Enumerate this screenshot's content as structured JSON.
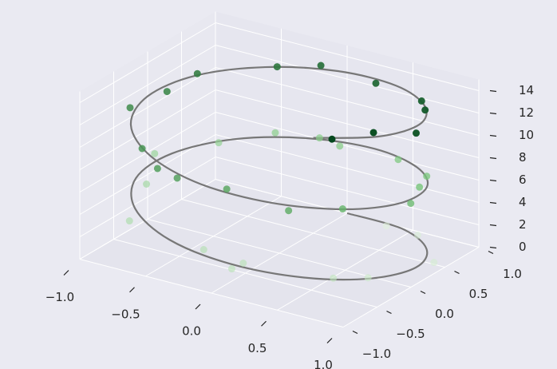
{
  "chart_data": {
    "type": "scatter3d",
    "xlim": [
      -1,
      1
    ],
    "ylim": [
      -1,
      1
    ],
    "zlim": [
      0,
      15
    ],
    "xticks": [
      {
        "value": -1,
        "label": "−1.0"
      },
      {
        "value": -0.5,
        "label": "−0.5"
      },
      {
        "value": 0,
        "label": "0.0"
      },
      {
        "value": 0.5,
        "label": "0.5"
      },
      {
        "value": 1,
        "label": "1.0"
      }
    ],
    "yticks": [
      {
        "value": -1,
        "label": "−1.0"
      },
      {
        "value": -0.5,
        "label": "−0.5"
      },
      {
        "value": 0,
        "label": "0.0"
      },
      {
        "value": 0.5,
        "label": "0.5"
      },
      {
        "value": 1,
        "label": "1.0"
      }
    ],
    "zticks": [
      0,
      2,
      4,
      6,
      8,
      10,
      12,
      14
    ],
    "grid": true,
    "line": {
      "color": "#777777",
      "z": [
        0,
        0.5,
        1,
        1.5,
        2,
        2.5,
        3,
        3.5,
        4,
        4.5,
        5,
        5.5,
        6,
        6.5,
        7,
        7.5,
        8,
        8.5,
        9,
        9.5,
        10,
        10.5,
        11,
        11.5,
        12,
        12.5,
        13,
        13.5,
        14,
        14.5,
        15
      ],
      "x": [
        0,
        0.48,
        0.84,
        1.0,
        0.91,
        0.6,
        0.14,
        -0.35,
        -0.76,
        -0.98,
        -0.96,
        -0.71,
        -0.28,
        0.22,
        0.66,
        0.94,
        0.99,
        0.8,
        0.41,
        -0.08,
        -0.54,
        -0.88,
        -1.0,
        -0.88,
        -0.54,
        -0.07,
        0.42,
        0.8,
        0.99,
        0.93,
        0.65
      ],
      "y": [
        1,
        0.88,
        0.54,
        0.07,
        -0.42,
        -0.8,
        -0.99,
        -0.94,
        -0.65,
        -0.21,
        0.28,
        0.71,
        0.96,
        0.98,
        0.75,
        0.35,
        -0.15,
        -0.6,
        -0.91,
        -1.0,
        -0.84,
        -0.48,
        0,
        0.48,
        0.84,
        1.0,
        0.91,
        0.59,
        0.14,
        -0.35,
        -0.76
      ]
    },
    "scatter": {
      "colormap": [
        "#e5f5e0",
        "#74c476",
        "#00441b"
      ],
      "z": [
        0.3,
        0.8,
        1.2,
        1.9,
        2.4,
        2.9,
        3.3,
        3.8,
        4.4,
        4.9,
        5.3,
        5.8,
        6.2,
        6.7,
        7.1,
        7.6,
        8.0,
        8.4,
        8.9,
        9.3,
        9.8,
        10.2,
        10.7,
        11.1,
        11.6,
        12.0,
        12.4,
        12.9,
        13.3,
        13.7,
        14.1,
        14.5,
        14.8,
        9.6,
        6.0,
        3.0
      ],
      "x": [
        0.35,
        0.65,
        1.02,
        0.88,
        0.75,
        0.18,
        -0.1,
        -0.7,
        -0.88,
        -1.06,
        -0.78,
        -0.52,
        -0.02,
        0.46,
        0.8,
        0.91,
        1.05,
        0.78,
        0.56,
        0.08,
        -0.42,
        -0.64,
        -1.02,
        -0.93,
        -0.88,
        -0.48,
        -0.22,
        0.28,
        0.72,
        0.86,
        1.06,
        0.87,
        0.74,
        -0.25,
        -0.22,
        0.2
      ],
      "y": [
        0.9,
        0.78,
        0.3,
        -0.4,
        -0.66,
        -1.05,
        -0.92,
        -0.85,
        -0.25,
        0.22,
        0.62,
        0.95,
        0.93,
        0.86,
        0.62,
        0.3,
        -0.1,
        -0.58,
        -0.95,
        -0.93,
        -0.98,
        -0.78,
        -0.22,
        0.15,
        0.5,
        0.9,
        1.04,
        0.88,
        0.7,
        0.48,
        -0.04,
        -0.3,
        -0.66,
        -1.02,
        1.02,
        -0.92
      ]
    }
  }
}
